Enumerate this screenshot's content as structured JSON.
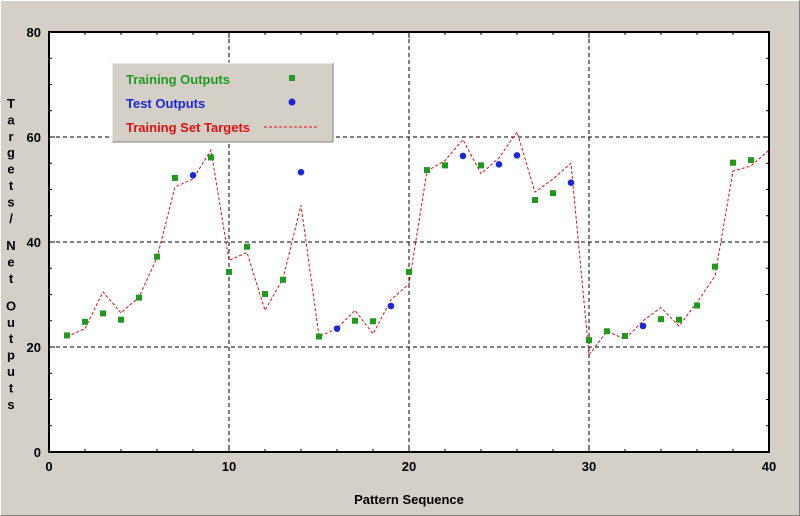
{
  "chart_data": {
    "type": "scatter",
    "xlabel": "Pattern Sequence",
    "ylabel": "Targets/Net Outputs",
    "xlim": [
      0,
      40
    ],
    "ylim": [
      0,
      80
    ],
    "xticks": [
      0,
      10,
      20,
      30,
      40
    ],
    "yticks": [
      0,
      20,
      40,
      60,
      80
    ],
    "grid": true,
    "legend_position": "top-left",
    "series": [
      {
        "name": "Training Outputs",
        "marker": "square",
        "color": "#1f9a1f",
        "points": [
          [
            1,
            22.2
          ],
          [
            2,
            24.8
          ],
          [
            3,
            26.4
          ],
          [
            4,
            25.2
          ],
          [
            5,
            29.4
          ],
          [
            6,
            37.2
          ],
          [
            7,
            52.2
          ],
          [
            9,
            56.1
          ],
          [
            10,
            34.3
          ],
          [
            11,
            39.1
          ],
          [
            12,
            30.1
          ],
          [
            13,
            32.8
          ],
          [
            15,
            22.0
          ],
          [
            17,
            25.0
          ],
          [
            18,
            24.9
          ],
          [
            20,
            34.3
          ],
          [
            21,
            53.7
          ],
          [
            22,
            54.6
          ],
          [
            24,
            54.6
          ],
          [
            27,
            48.0
          ],
          [
            28,
            49.3
          ],
          [
            30,
            21.3
          ],
          [
            31,
            23.0
          ],
          [
            32,
            22.1
          ],
          [
            34,
            25.3
          ],
          [
            35,
            25.2
          ],
          [
            36,
            27.9
          ],
          [
            37,
            35.3
          ],
          [
            38,
            55.1
          ],
          [
            39,
            55.6
          ]
        ]
      },
      {
        "name": "Test Outputs",
        "marker": "circle",
        "color": "#1c28d8",
        "points": [
          [
            8,
            52.7
          ],
          [
            14,
            53.3
          ],
          [
            16,
            23.5
          ],
          [
            19,
            27.8
          ],
          [
            23,
            56.4
          ],
          [
            25,
            54.8
          ],
          [
            26,
            56.5
          ],
          [
            29,
            51.3
          ],
          [
            33,
            24.0
          ]
        ]
      },
      {
        "name": "Training Set Targets",
        "marker": "dashed-line",
        "color": "#e01010",
        "points": [
          [
            1,
            22.0
          ],
          [
            2,
            23.5
          ],
          [
            3,
            30.5
          ],
          [
            4,
            26.5
          ],
          [
            5,
            29.5
          ],
          [
            6,
            37.0
          ],
          [
            7,
            50.5
          ],
          [
            8,
            52.0
          ],
          [
            9,
            57.5
          ],
          [
            10,
            36.5
          ],
          [
            11,
            38.0
          ],
          [
            12,
            27.0
          ],
          [
            13,
            33.0
          ],
          [
            14,
            47.0
          ],
          [
            15,
            22.0
          ],
          [
            16,
            23.5
          ],
          [
            17,
            27.0
          ],
          [
            18,
            22.5
          ],
          [
            19,
            29.0
          ],
          [
            20,
            32.0
          ],
          [
            21,
            53.5
          ],
          [
            22,
            55.5
          ],
          [
            23,
            59.5
          ],
          [
            24,
            53.0
          ],
          [
            25,
            56.0
          ],
          [
            26,
            61.0
          ],
          [
            27,
            49.5
          ],
          [
            28,
            52.0
          ],
          [
            29,
            55.0
          ],
          [
            30,
            18.5
          ],
          [
            31,
            23.0
          ],
          [
            32,
            21.5
          ],
          [
            33,
            25.0
          ],
          [
            34,
            27.5
          ],
          [
            35,
            24.0
          ],
          [
            36,
            28.5
          ],
          [
            37,
            33.5
          ],
          [
            38,
            53.5
          ],
          [
            39,
            54.5
          ],
          [
            40,
            57.5
          ]
        ]
      }
    ]
  },
  "legend": {
    "items": [
      {
        "label": "Training Outputs",
        "color": "#1f9a1f",
        "symbol": "square"
      },
      {
        "label": "Test Outputs",
        "color": "#1c28d8",
        "symbol": "circle"
      },
      {
        "label": "Training Set Targets",
        "color": "#e01010",
        "symbol": "dashed-line"
      }
    ]
  },
  "axes": {
    "x_title": "Pattern Sequence",
    "y_title_line1": "Targets/",
    "y_title_line2": "Net",
    "y_title_line3": "Outputs"
  },
  "colors": {
    "background": "#d4d0c8",
    "plot_background": "#ffffff",
    "grid": "#000000"
  }
}
